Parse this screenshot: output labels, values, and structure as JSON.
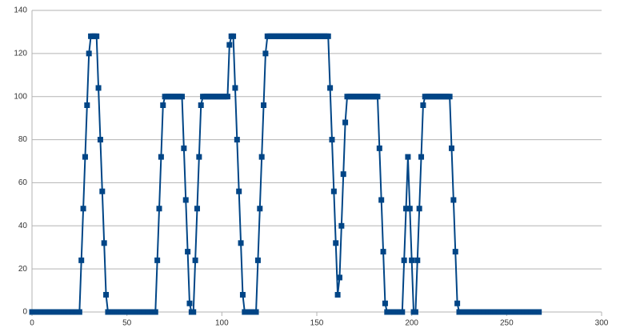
{
  "chart_data": {
    "type": "line",
    "x": [
      0,
      1,
      2,
      3,
      4,
      5,
      6,
      7,
      8,
      9,
      10,
      11,
      12,
      13,
      14,
      15,
      16,
      17,
      18,
      19,
      20,
      21,
      22,
      23,
      24,
      25,
      26,
      27,
      28,
      29,
      30,
      31,
      32,
      33,
      34,
      35,
      36,
      37,
      38,
      39,
      40,
      41,
      42,
      43,
      44,
      45,
      46,
      47,
      48,
      49,
      50,
      51,
      52,
      53,
      54,
      55,
      56,
      57,
      58,
      59,
      60,
      61,
      62,
      63,
      64,
      65,
      66,
      67,
      68,
      69,
      70,
      71,
      72,
      73,
      74,
      75,
      76,
      77,
      78,
      79,
      80,
      81,
      82,
      83,
      84,
      85,
      86,
      87,
      88,
      89,
      90,
      91,
      92,
      93,
      94,
      95,
      96,
      97,
      98,
      99,
      100,
      101,
      102,
      103,
      104,
      105,
      106,
      107,
      108,
      109,
      110,
      111,
      112,
      113,
      114,
      115,
      116,
      117,
      118,
      119,
      120,
      121,
      122,
      123,
      124,
      125,
      126,
      127,
      128,
      129,
      130,
      131,
      132,
      133,
      134,
      135,
      136,
      137,
      138,
      139,
      140,
      141,
      142,
      143,
      144,
      145,
      146,
      147,
      148,
      149,
      150,
      151,
      152,
      153,
      154,
      155,
      156,
      157,
      158,
      159,
      160,
      161,
      162,
      163,
      164,
      165,
      166,
      167,
      168,
      169,
      170,
      171,
      172,
      173,
      174,
      175,
      176,
      177,
      178,
      179,
      180,
      181,
      182,
      183,
      184,
      185,
      186,
      187,
      188,
      189,
      190,
      191,
      192,
      193,
      194,
      195,
      196,
      197,
      198,
      199,
      200,
      201,
      202,
      203,
      204,
      205,
      206,
      207,
      208,
      209,
      210,
      211,
      212,
      213,
      214,
      215,
      216,
      217,
      218,
      219,
      220,
      221,
      222,
      223,
      224,
      225,
      226,
      227,
      228,
      229,
      230,
      231,
      232,
      233,
      234,
      235,
      236,
      237,
      238,
      239,
      240,
      241,
      242,
      243,
      244,
      245,
      246,
      247,
      248,
      249,
      250,
      251,
      252,
      253,
      254,
      255,
      256,
      257,
      258,
      259,
      260,
      261,
      262,
      263,
      264,
      265,
      266,
      267
    ],
    "series": [
      {
        "color": "#004586",
        "values": [
          0,
          0,
          0,
          0,
          0,
          0,
          0,
          0,
          0,
          0,
          0,
          0,
          0,
          0,
          0,
          0,
          0,
          0,
          0,
          0,
          0,
          0,
          0,
          0,
          0,
          0,
          24,
          48,
          72,
          96,
          120,
          128,
          128,
          128,
          128,
          104,
          80,
          56,
          32,
          8,
          0,
          0,
          0,
          0,
          0,
          0,
          0,
          0,
          0,
          0,
          0,
          0,
          0,
          0,
          0,
          0,
          0,
          0,
          0,
          0,
          0,
          0,
          0,
          0,
          0,
          0,
          24,
          48,
          72,
          96,
          100,
          100,
          100,
          100,
          100,
          100,
          100,
          100,
          100,
          100,
          76,
          52,
          28,
          4,
          0,
          0,
          24,
          48,
          72,
          96,
          100,
          100,
          100,
          100,
          100,
          100,
          100,
          100,
          100,
          100,
          100,
          100,
          100,
          100,
          124,
          128,
          128,
          104,
          80,
          56,
          32,
          8,
          0,
          0,
          0,
          0,
          0,
          0,
          0,
          24,
          48,
          72,
          96,
          120,
          128,
          128,
          128,
          128,
          128,
          128,
          128,
          128,
          128,
          128,
          128,
          128,
          128,
          128,
          128,
          128,
          128,
          128,
          128,
          128,
          128,
          128,
          128,
          128,
          128,
          128,
          128,
          128,
          128,
          128,
          128,
          128,
          128,
          104,
          80,
          56,
          32,
          8,
          16,
          40,
          64,
          88,
          100,
          100,
          100,
          100,
          100,
          100,
          100,
          100,
          100,
          100,
          100,
          100,
          100,
          100,
          100,
          100,
          100,
          76,
          52,
          28,
          4,
          0,
          0,
          0,
          0,
          0,
          0,
          0,
          0,
          0,
          24,
          48,
          72,
          48,
          24,
          0,
          0,
          24,
          48,
          72,
          96,
          100,
          100,
          100,
          100,
          100,
          100,
          100,
          100,
          100,
          100,
          100,
          100,
          100,
          100,
          76,
          52,
          28,
          4,
          0,
          0,
          0,
          0,
          0,
          0,
          0,
          0,
          0,
          0,
          0,
          0,
          0,
          0,
          0,
          0,
          0,
          0,
          0,
          0,
          0,
          0,
          0,
          0,
          0,
          0,
          0,
          0,
          0,
          0,
          0,
          0,
          0,
          0,
          0,
          0,
          0,
          0,
          0,
          0,
          0,
          0,
          0
        ]
      }
    ],
    "xlim": [
      0,
      300
    ],
    "xticks": [
      0,
      50,
      100,
      150,
      200,
      250,
      300
    ],
    "ylim": [
      0,
      140
    ],
    "yticks": [
      0,
      20,
      40,
      60,
      80,
      100,
      120,
      140
    ],
    "grid": true
  }
}
